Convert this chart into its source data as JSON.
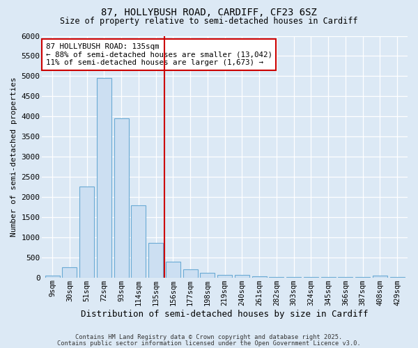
{
  "title_line1": "87, HOLLYBUSH ROAD, CARDIFF, CF23 6SZ",
  "title_line2": "Size of property relative to semi-detached houses in Cardiff",
  "xlabel": "Distribution of semi-detached houses by size in Cardiff",
  "ylabel": "Number of semi-detached properties",
  "categories": [
    "9sqm",
    "30sqm",
    "51sqm",
    "72sqm",
    "93sqm",
    "114sqm",
    "135sqm",
    "156sqm",
    "177sqm",
    "198sqm",
    "219sqm",
    "240sqm",
    "261sqm",
    "282sqm",
    "303sqm",
    "324sqm",
    "345sqm",
    "366sqm",
    "387sqm",
    "408sqm",
    "429sqm"
  ],
  "values": [
    50,
    260,
    2260,
    4950,
    3950,
    1800,
    850,
    400,
    195,
    115,
    70,
    58,
    30,
    6,
    5,
    5,
    5,
    5,
    5,
    40,
    5
  ],
  "bar_color": "#ccdff2",
  "bar_edge_color": "#6aaad4",
  "vline_x_index": 6,
  "vline_color": "#cc0000",
  "annotation_text": "87 HOLLYBUSH ROAD: 135sqm\n← 88% of semi-detached houses are smaller (13,042)\n11% of semi-detached houses are larger (1,673) →",
  "annotation_box_color": "#ffffff",
  "annotation_box_edge": "#cc0000",
  "ylim": [
    0,
    6000
  ],
  "yticks": [
    0,
    500,
    1000,
    1500,
    2000,
    2500,
    3000,
    3500,
    4000,
    4500,
    5000,
    5500,
    6000
  ],
  "background_color": "#dce9f5",
  "grid_color": "#ffffff",
  "footer_line1": "Contains HM Land Registry data © Crown copyright and database right 2025.",
  "footer_line2": "Contains public sector information licensed under the Open Government Licence v3.0."
}
